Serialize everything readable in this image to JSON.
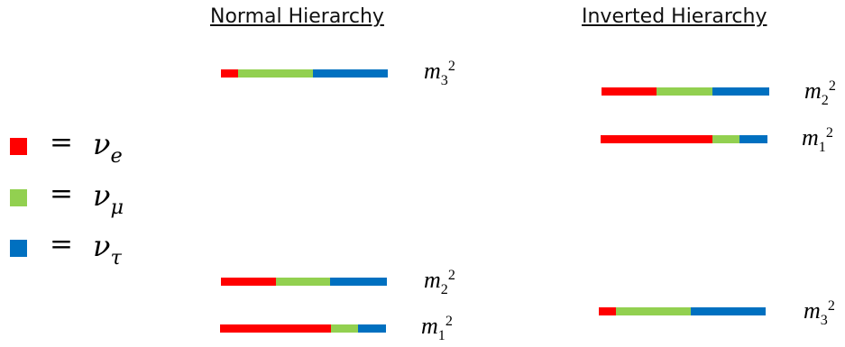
{
  "colors": {
    "nu_e": "#ff0000",
    "nu_mu": "#92d050",
    "nu_tau": "#0070c0"
  },
  "headings": {
    "normal": "Normal Hierarchy",
    "inverted": "Inverted Hierarchy"
  },
  "legend": [
    {
      "color": "#ff0000",
      "equals": "=",
      "symbol": "ν",
      "subscript": "e"
    },
    {
      "color": "#92d050",
      "equals": "=",
      "symbol": "ν",
      "subscript": "μ"
    },
    {
      "color": "#0070c0",
      "equals": "=",
      "symbol": "ν",
      "subscript": "τ"
    }
  ],
  "normal_hierarchy": {
    "levels": [
      {
        "mass": "m",
        "index": "3",
        "power": "2",
        "fractions": {
          "nu_e": 0.1,
          "nu_mu": 0.45,
          "nu_tau": 0.45
        }
      },
      {
        "mass": "m",
        "index": "2",
        "power": "2",
        "fractions": {
          "nu_e": 0.33,
          "nu_mu": 0.33,
          "nu_tau": 0.34
        }
      },
      {
        "mass": "m",
        "index": "1",
        "power": "2",
        "fractions": {
          "nu_e": 0.67,
          "nu_mu": 0.16,
          "nu_tau": 0.17
        }
      }
    ]
  },
  "inverted_hierarchy": {
    "levels": [
      {
        "mass": "m",
        "index": "2",
        "power": "2",
        "fractions": {
          "nu_e": 0.33,
          "nu_mu": 0.33,
          "nu_tau": 0.34
        }
      },
      {
        "mass": "m",
        "index": "1",
        "power": "2",
        "fractions": {
          "nu_e": 0.67,
          "nu_mu": 0.16,
          "nu_tau": 0.17
        }
      },
      {
        "mass": "m",
        "index": "3",
        "power": "2",
        "fractions": {
          "nu_e": 0.1,
          "nu_mu": 0.45,
          "nu_tau": 0.45
        }
      }
    ]
  }
}
